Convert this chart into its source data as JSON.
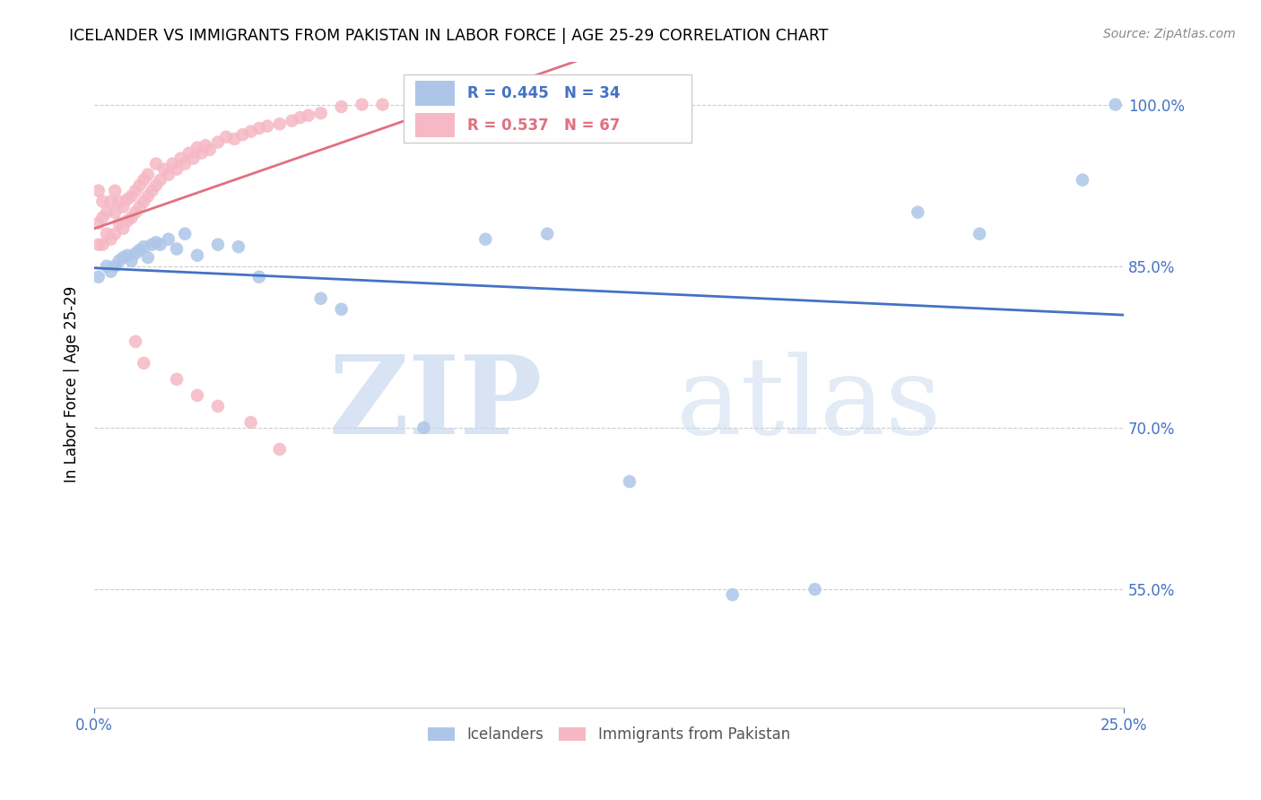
{
  "title": "ICELANDER VS IMMIGRANTS FROM PAKISTAN IN LABOR FORCE | AGE 25-29 CORRELATION CHART",
  "source": "Source: ZipAtlas.com",
  "ylabel": "In Labor Force | Age 25-29",
  "yticks": [
    0.55,
    0.7,
    0.85,
    1.0
  ],
  "ytick_labels": [
    "55.0%",
    "70.0%",
    "85.0%",
    "100.0%"
  ],
  "xmin": 0.0,
  "xmax": 0.25,
  "ymin": 0.44,
  "ymax": 1.04,
  "blue_R": 0.445,
  "blue_N": 34,
  "pink_R": 0.537,
  "pink_N": 67,
  "blue_color": "#adc6e8",
  "pink_color": "#f5b8c4",
  "blue_line_color": "#4472c4",
  "pink_line_color": "#e07080",
  "legend_blue_label": "Icelanders",
  "legend_pink_label": "Immigrants from Pakistan",
  "watermark_zip": "ZIP",
  "watermark_atlas": "atlas",
  "blue_scatter_x": [
    0.001,
    0.003,
    0.004,
    0.005,
    0.006,
    0.007,
    0.008,
    0.009,
    0.01,
    0.011,
    0.012,
    0.013,
    0.014,
    0.015,
    0.016,
    0.018,
    0.02,
    0.022,
    0.025,
    0.03,
    0.035,
    0.04,
    0.055,
    0.06,
    0.08,
    0.095,
    0.11,
    0.13,
    0.155,
    0.175,
    0.2,
    0.215,
    0.24,
    0.248
  ],
  "blue_scatter_y": [
    0.84,
    0.85,
    0.845,
    0.85,
    0.855,
    0.858,
    0.86,
    0.855,
    0.862,
    0.865,
    0.868,
    0.858,
    0.87,
    0.872,
    0.87,
    0.875,
    0.866,
    0.88,
    0.86,
    0.87,
    0.868,
    0.84,
    0.82,
    0.81,
    0.7,
    0.875,
    0.88,
    0.65,
    0.545,
    0.55,
    0.9,
    0.88,
    0.93,
    1.0
  ],
  "pink_scatter_x": [
    0.001,
    0.001,
    0.001,
    0.002,
    0.002,
    0.002,
    0.003,
    0.003,
    0.004,
    0.004,
    0.005,
    0.005,
    0.005,
    0.006,
    0.006,
    0.007,
    0.007,
    0.008,
    0.008,
    0.009,
    0.009,
    0.01,
    0.01,
    0.011,
    0.011,
    0.012,
    0.012,
    0.013,
    0.013,
    0.014,
    0.015,
    0.015,
    0.016,
    0.017,
    0.018,
    0.019,
    0.02,
    0.021,
    0.022,
    0.023,
    0.024,
    0.025,
    0.026,
    0.027,
    0.028,
    0.03,
    0.032,
    0.034,
    0.036,
    0.038,
    0.04,
    0.042,
    0.045,
    0.048,
    0.05,
    0.052,
    0.055,
    0.06,
    0.065,
    0.07,
    0.01,
    0.012,
    0.02,
    0.025,
    0.03,
    0.038,
    0.045
  ],
  "pink_scatter_y": [
    0.87,
    0.89,
    0.92,
    0.87,
    0.895,
    0.91,
    0.88,
    0.9,
    0.875,
    0.91,
    0.88,
    0.9,
    0.92,
    0.89,
    0.91,
    0.885,
    0.905,
    0.892,
    0.912,
    0.895,
    0.915,
    0.9,
    0.92,
    0.905,
    0.925,
    0.91,
    0.93,
    0.915,
    0.935,
    0.92,
    0.925,
    0.945,
    0.93,
    0.94,
    0.935,
    0.945,
    0.94,
    0.95,
    0.945,
    0.955,
    0.95,
    0.96,
    0.955,
    0.962,
    0.958,
    0.965,
    0.97,
    0.968,
    0.972,
    0.975,
    0.978,
    0.98,
    0.982,
    0.985,
    0.988,
    0.99,
    0.992,
    0.998,
    1.0,
    1.0,
    0.78,
    0.76,
    0.745,
    0.73,
    0.72,
    0.705,
    0.68
  ]
}
